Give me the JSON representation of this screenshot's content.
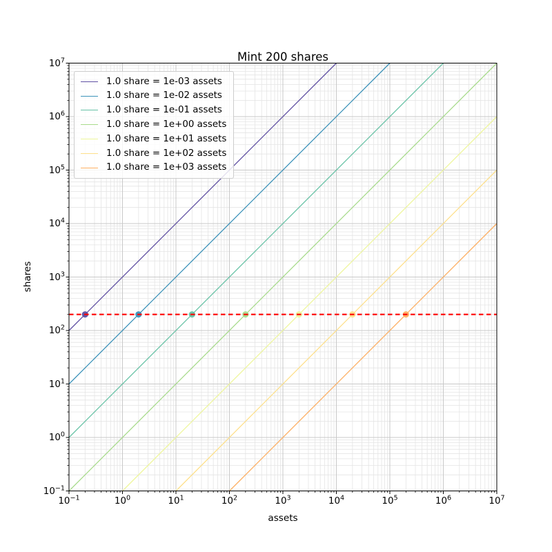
{
  "chart_data": {
    "type": "line",
    "title": "Mint 200 shares",
    "xlabel": "assets",
    "ylabel": "shares",
    "xscale": "log",
    "yscale": "log",
    "xlim": [
      0.1,
      10000000
    ],
    "ylim": [
      0.1,
      10000000
    ],
    "x_tick_exponents": [
      -1,
      0,
      1,
      2,
      3,
      4,
      5,
      6,
      7
    ],
    "y_tick_exponents": [
      -1,
      0,
      1,
      2,
      3,
      4,
      5,
      6,
      7
    ],
    "grid": {
      "which": "both",
      "major_color": "#c8c8c8",
      "minor_color": "#e4e4e4"
    },
    "legend": {
      "position": "upper-left",
      "border_color": "#cccccc",
      "background": "#ffffff"
    },
    "series": [
      {
        "label": "1.0 share = 1e-03 assets",
        "assets_per_share": 0.001,
        "color": "#5e4fa2",
        "marker": {
          "assets": 0.2,
          "shares": 200
        }
      },
      {
        "label": "1.0 share = 1e-02 assets",
        "assets_per_share": 0.01,
        "color": "#3b92b9",
        "marker": {
          "assets": 2,
          "shares": 200
        }
      },
      {
        "label": "1.0 share = 1e-01 assets",
        "assets_per_share": 0.1,
        "color": "#66c2a5",
        "marker": {
          "assets": 20,
          "shares": 200
        }
      },
      {
        "label": "1.0 share = 1e+00 assets",
        "assets_per_share": 1,
        "color": "#a8db8c",
        "marker": {
          "assets": 200,
          "shares": 200
        }
      },
      {
        "label": "1.0 share = 1e+01 assets",
        "assets_per_share": 10,
        "color": "#eef69b",
        "marker": {
          "assets": 2000,
          "shares": 200
        }
      },
      {
        "label": "1.0 share = 1e+02 assets",
        "assets_per_share": 100,
        "color": "#fee08b",
        "marker": {
          "assets": 20000,
          "shares": 200
        }
      },
      {
        "label": "1.0 share = 1e+03 assets",
        "assets_per_share": 1000,
        "color": "#fdae61",
        "marker": {
          "assets": 200000,
          "shares": 200
        }
      }
    ],
    "reference_line": {
      "shares": 200,
      "color": "#ff0000",
      "style": "dashed"
    }
  }
}
